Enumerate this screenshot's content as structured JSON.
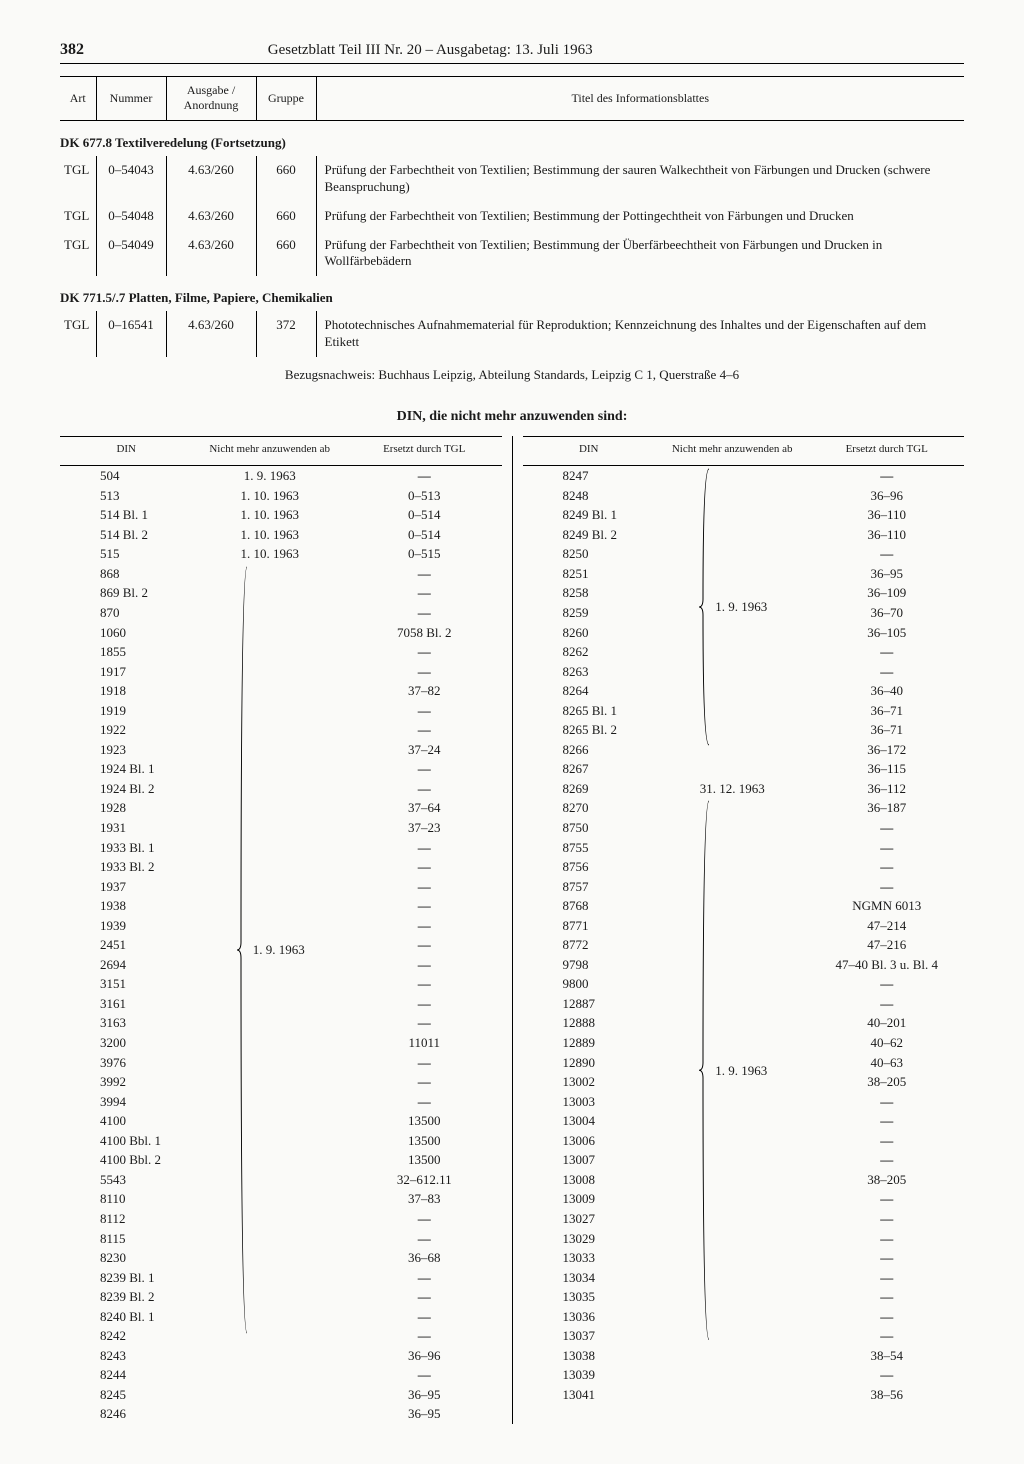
{
  "page_number": "382",
  "header_title": "Gesetzblatt Teil III Nr. 20 – Ausgabetag: 13. Juli 1963",
  "tgl_headers": {
    "art": "Art",
    "nummer": "Nummer",
    "ausgabe": "Ausgabe / Anordnung",
    "gruppe": "Gruppe",
    "titel": "Titel des Informationsblattes"
  },
  "section1_title": "DK 677.8 Textilveredelung (Fortsetzung)",
  "section1_rows": [
    {
      "art": "TGL",
      "nummer": "0–54043",
      "ausgabe": "4.63/260",
      "gruppe": "660",
      "titel": "Prüfung der Farbechtheit von Textilien; Bestimmung der sauren Walkechtheit von Färbungen und Drucken (schwere Beanspruchung)"
    },
    {
      "art": "TGL",
      "nummer": "0–54048",
      "ausgabe": "4.63/260",
      "gruppe": "660",
      "titel": "Prüfung der Farbechtheit von Textilien; Bestimmung der Pottingechtheit von Färbungen und Drucken"
    },
    {
      "art": "TGL",
      "nummer": "0–54049",
      "ausgabe": "4.63/260",
      "gruppe": "660",
      "titel": "Prüfung der Farbechtheit von Textilien; Bestimmung der Überfärbeechtheit von Färbungen und Drucken in Wollfärbebädern"
    }
  ],
  "section2_title": "DK 771.5/.7 Platten, Filme, Papiere, Chemikalien",
  "section2_rows": [
    {
      "art": "TGL",
      "nummer": "0–16541",
      "ausgabe": "4.63/260",
      "gruppe": "372",
      "titel": "Phototechnisches Aufnahmematerial für Reproduktion; Kennzeichnung des Inhaltes und der Eigenschaften auf dem Etikett"
    }
  ],
  "ref_note": "Bezugsnachweis: Buchhaus Leipzig, Abteilung Standards, Leipzig C 1, Querstraße 4–6",
  "din_heading": "DIN, die nicht mehr anzuwenden sind:",
  "din_headers": {
    "din": "DIN",
    "date": "Nicht mehr anzuwenden ab",
    "repl": "Ersetzt durch TGL"
  },
  "left_block1_date": "1. 9. 1963",
  "right_block1_date": "1. 9. 1963",
  "right_block2_date": "31. 12. 1963",
  "right_block3_date": "1. 9. 1963",
  "left_pre": [
    {
      "din": "504",
      "date": "1. 9. 1963",
      "repl": "—"
    },
    {
      "din": "513",
      "date": "1. 10. 1963",
      "repl": "0–513"
    },
    {
      "din": "514 Bl. 1",
      "date": "1. 10. 1963",
      "repl": "0–514"
    },
    {
      "din": "514 Bl. 2",
      "date": "1. 10. 1963",
      "repl": "0–514"
    },
    {
      "din": "515",
      "date": "1. 10. 1963",
      "repl": "0–515"
    }
  ],
  "left_brace": [
    {
      "din": "868",
      "repl": "—"
    },
    {
      "din": "869 Bl. 2",
      "repl": "—"
    },
    {
      "din": "870",
      "repl": "—"
    },
    {
      "din": "1060",
      "repl": "7058 Bl. 2"
    },
    {
      "din": "1855",
      "repl": "—"
    },
    {
      "din": "1917",
      "repl": "—"
    },
    {
      "din": "1918",
      "repl": "37–82"
    },
    {
      "din": "1919",
      "repl": "—"
    },
    {
      "din": "1922",
      "repl": "—"
    },
    {
      "din": "1923",
      "repl": "37–24"
    },
    {
      "din": "1924 Bl. 1",
      "repl": "—"
    },
    {
      "din": "1924 Bl. 2",
      "repl": "—"
    },
    {
      "din": "1928",
      "repl": "37–64"
    },
    {
      "din": "1931",
      "repl": "37–23"
    },
    {
      "din": "1933 Bl. 1",
      "repl": "—"
    },
    {
      "din": "1933 Bl. 2",
      "repl": "—"
    },
    {
      "din": "1937",
      "repl": "—"
    },
    {
      "din": "1938",
      "repl": "—"
    },
    {
      "din": "1939",
      "repl": "—"
    },
    {
      "din": "2451",
      "repl": "—"
    },
    {
      "din": "2694",
      "repl": "—"
    },
    {
      "din": "3151",
      "repl": "—"
    },
    {
      "din": "3161",
      "repl": "—"
    },
    {
      "din": "3163",
      "repl": "—"
    },
    {
      "din": "3200",
      "repl": "11011"
    },
    {
      "din": "3976",
      "repl": "—"
    },
    {
      "din": "3992",
      "repl": "—"
    },
    {
      "din": "3994",
      "repl": "—"
    },
    {
      "din": "4100",
      "repl": "13500"
    },
    {
      "din": "4100 Bbl. 1",
      "repl": "13500"
    },
    {
      "din": "4100 Bbl. 2",
      "repl": "13500"
    },
    {
      "din": "5543",
      "repl": "32–612.11"
    },
    {
      "din": "8110",
      "repl": "37–83"
    },
    {
      "din": "8112",
      "repl": "—"
    },
    {
      "din": "8115",
      "repl": "—"
    },
    {
      "din": "8230",
      "repl": "36–68"
    },
    {
      "din": "8239 Bl. 1",
      "repl": "—"
    },
    {
      "din": "8239 Bl. 2",
      "repl": "—"
    },
    {
      "din": "8240 Bl. 1",
      "repl": "—"
    },
    {
      "din": "8242",
      "repl": "—"
    },
    {
      "din": "8243",
      "repl": "36–96"
    },
    {
      "din": "8244",
      "repl": "—"
    },
    {
      "din": "8245",
      "repl": "36–95"
    },
    {
      "din": "8246",
      "repl": "36–95"
    }
  ],
  "right_brace1": [
    {
      "din": "8247",
      "repl": "—"
    },
    {
      "din": "8248",
      "repl": "36–96"
    },
    {
      "din": "8249 Bl. 1",
      "repl": "36–110"
    },
    {
      "din": "8249 Bl. 2",
      "repl": "36–110"
    },
    {
      "din": "8250",
      "repl": "—"
    },
    {
      "din": "8251",
      "repl": "36–95"
    },
    {
      "din": "8258",
      "repl": "36–109"
    },
    {
      "din": "8259",
      "repl": "36–70"
    },
    {
      "din": "8260",
      "repl": "36–105"
    },
    {
      "din": "8262",
      "repl": "—"
    },
    {
      "din": "8263",
      "repl": "—"
    },
    {
      "din": "8264",
      "repl": "36–40"
    },
    {
      "din": "8265 Bl. 1",
      "repl": "36–71"
    },
    {
      "din": "8265 Bl. 2",
      "repl": "36–71"
    },
    {
      "din": "8266",
      "repl": "36–172"
    },
    {
      "din": "8267",
      "repl": "36–115"
    }
  ],
  "right_single": [
    {
      "din": "8269",
      "date": "31. 12. 1963",
      "repl": "36–112"
    }
  ],
  "right_brace2": [
    {
      "din": "8270",
      "repl": "36–187"
    },
    {
      "din": "8750",
      "repl": "—"
    },
    {
      "din": "8755",
      "repl": "—"
    },
    {
      "din": "8756",
      "repl": "—"
    },
    {
      "din": "8757",
      "repl": "—"
    },
    {
      "din": "8768",
      "repl": "NGMN 6013"
    },
    {
      "din": "8771",
      "repl": "47–214"
    },
    {
      "din": "8772",
      "repl": "47–216"
    },
    {
      "din": "9798",
      "repl": "47–40 Bl. 3 u. Bl. 4"
    },
    {
      "din": "9800",
      "repl": "—"
    },
    {
      "din": "12887",
      "repl": "—"
    },
    {
      "din": "12888",
      "repl": "40–201"
    },
    {
      "din": "12889",
      "repl": "40–62"
    },
    {
      "din": "12890",
      "repl": "40–63"
    },
    {
      "din": "13002",
      "repl": "38–205"
    },
    {
      "din": "13003",
      "repl": "—"
    },
    {
      "din": "13004",
      "repl": "—"
    },
    {
      "din": "13006",
      "repl": "—"
    },
    {
      "din": "13007",
      "repl": "—"
    },
    {
      "din": "13008",
      "repl": "38–205"
    },
    {
      "din": "13009",
      "repl": "—"
    },
    {
      "din": "13027",
      "repl": "—"
    },
    {
      "din": "13029",
      "repl": "—"
    },
    {
      "din": "13033",
      "repl": "—"
    },
    {
      "din": "13034",
      "repl": "—"
    },
    {
      "din": "13035",
      "repl": "—"
    },
    {
      "din": "13036",
      "repl": "—"
    },
    {
      "din": "13037",
      "repl": "—"
    },
    {
      "din": "13038",
      "repl": "38–54"
    },
    {
      "din": "13039",
      "repl": "—"
    },
    {
      "din": "13041",
      "repl": "38–56"
    }
  ]
}
